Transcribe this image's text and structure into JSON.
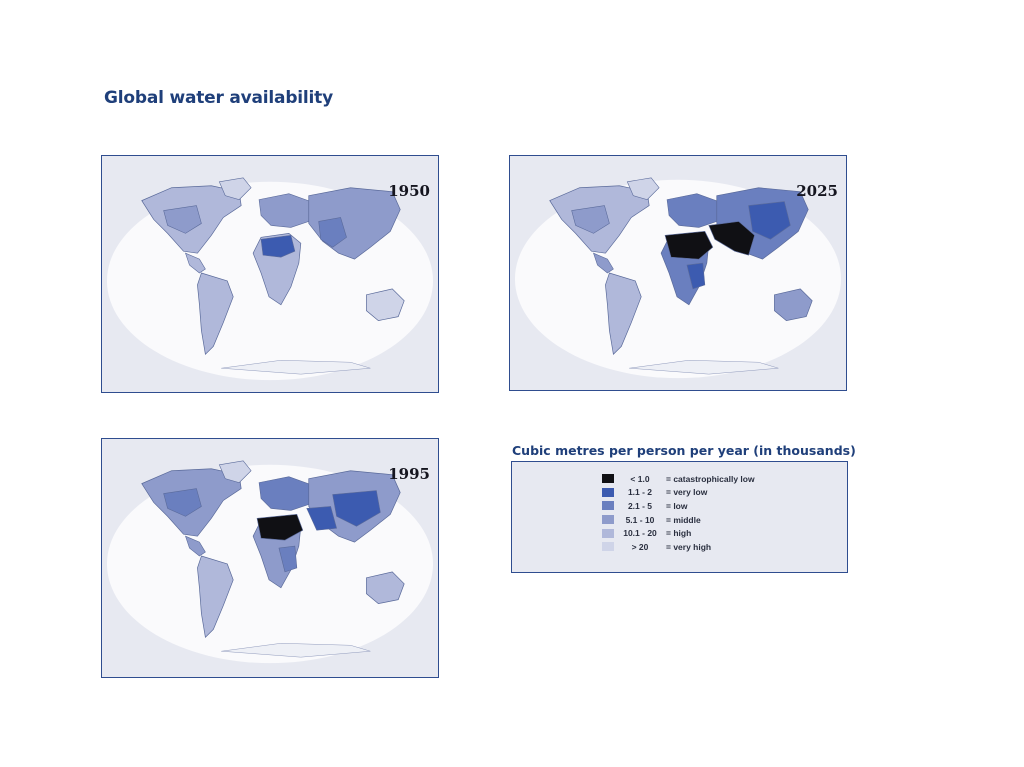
{
  "title": "Global water availability",
  "maps": [
    {
      "year": "1950"
    },
    {
      "year": "2025"
    },
    {
      "year": "1995"
    }
  ],
  "legend": {
    "heading": "Cubic metres per person per year (in thousands)",
    "items": [
      {
        "range": "< 1.0",
        "label": "= catastrophically low",
        "color": "#101014"
      },
      {
        "range": "1.1 - 2",
        "label": "= very low",
        "color": "#3c5bb0"
      },
      {
        "range": "2.1 - 5",
        "label": "= low",
        "color": "#6a7fbf"
      },
      {
        "range": "5.1 - 10",
        "label": "= middle",
        "color": "#8e9bcb"
      },
      {
        "range": "10.1 - 20",
        "label": "= high",
        "color": "#b0b8da"
      },
      {
        "range": "> 20",
        "label": "= very high",
        "color": "#cfd4e8"
      }
    ]
  },
  "colors": {
    "title": "#1f3f7a",
    "frame_border": "#2f4d8f",
    "frame_bg": "#e7e9f1",
    "ocean": "#fafafc",
    "outline": "#5a6a9a"
  }
}
